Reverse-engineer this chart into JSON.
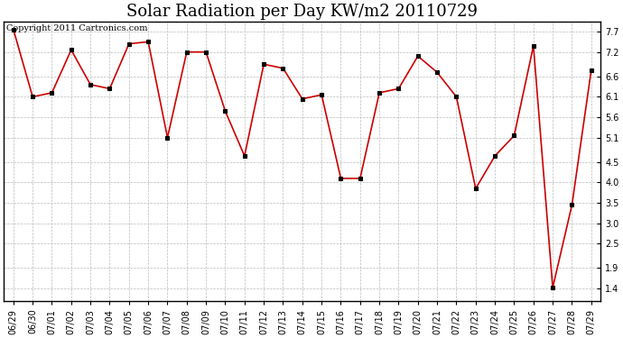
{
  "title": "Solar Radiation per Day KW/m2 20110729",
  "copyright": "Copyright 2011 Cartronics.com",
  "dates": [
    "06/29",
    "06/30",
    "07/01",
    "07/02",
    "07/03",
    "07/04",
    "07/05",
    "07/06",
    "07/07",
    "07/08",
    "07/09",
    "07/10",
    "07/11",
    "07/12",
    "07/13",
    "07/14",
    "07/15",
    "07/16",
    "07/17",
    "07/18",
    "07/19",
    "07/20",
    "07/21",
    "07/22",
    "07/23",
    "07/24",
    "07/25",
    "07/26",
    "07/27",
    "07/28",
    "07/29"
  ],
  "values": [
    7.75,
    6.1,
    6.2,
    7.25,
    6.4,
    6.3,
    7.4,
    7.45,
    5.1,
    7.2,
    7.2,
    5.75,
    4.65,
    6.9,
    6.8,
    6.05,
    6.15,
    4.1,
    4.1,
    6.2,
    6.3,
    7.1,
    6.7,
    6.1,
    3.85,
    4.65,
    5.15,
    7.35,
    1.42,
    3.45,
    6.75
  ],
  "line_color": "#cc0000",
  "marker_color": "#000000",
  "bg_color": "#ffffff",
  "grid_color": "#bbbbbb",
  "yticks": [
    1.4,
    1.9,
    2.5,
    3.0,
    3.5,
    4.0,
    4.5,
    5.1,
    5.6,
    6.1,
    6.6,
    7.2,
    7.7
  ],
  "ymin": 1.1,
  "ymax": 7.95,
  "title_fontsize": 13,
  "tick_fontsize": 7,
  "copyright_fontsize": 7
}
